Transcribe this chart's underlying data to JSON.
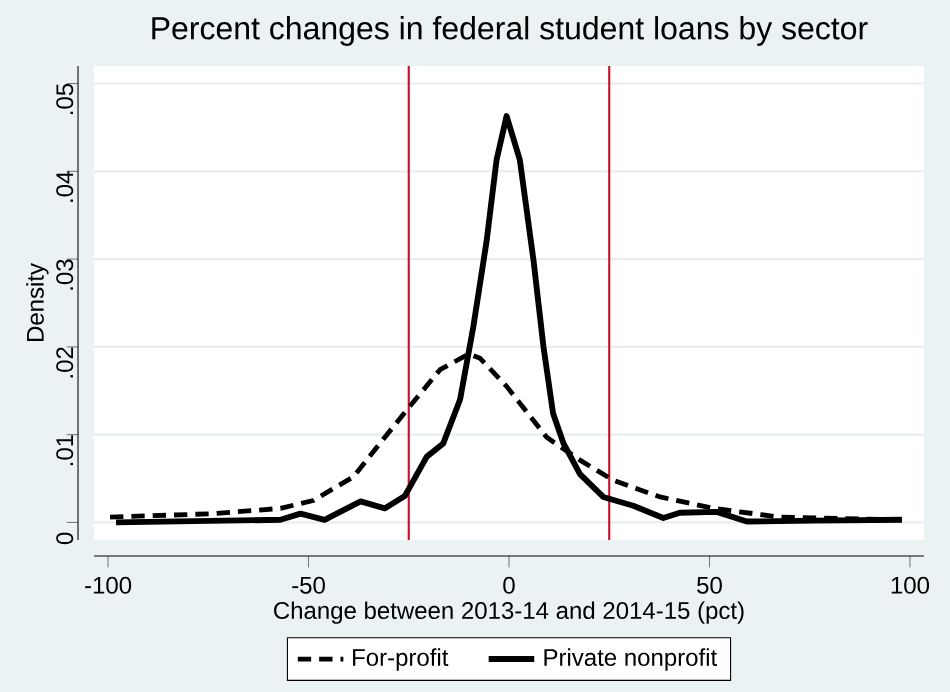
{
  "chart_data": {
    "type": "line",
    "title": "Percent changes in federal student loans by sector",
    "xlabel": "Change between 2013-14 and 2014-15 (pct)",
    "ylabel": "Density",
    "xlim": [
      -103.5,
      103.5
    ],
    "ylim": [
      -0.002,
      0.052
    ],
    "xticks": [
      -100,
      -50,
      0,
      50,
      100
    ],
    "yticks": [
      0,
      {
        "value": 0.01,
        "label": ".01"
      },
      {
        "value": 0.02,
        "label": ".02"
      },
      {
        "value": 0.03,
        "label": ".03"
      },
      {
        "value": 0.04,
        "label": ".04"
      },
      {
        "value": 0.05,
        "label": ".05"
      }
    ],
    "grid": "y",
    "legend": "bottom",
    "ref_lines": [
      {
        "axis": "x",
        "value": -25,
        "color": "#c8102e"
      },
      {
        "axis": "x",
        "value": 25,
        "color": "#c8102e"
      }
    ],
    "series": [
      {
        "name": "For-profit",
        "color": "#000000",
        "line_style": "dashed",
        "x": [
          -99.5,
          -73.7,
          -57,
          -48.8,
          -38.8,
          -32.2,
          -25.5,
          -17.2,
          -10,
          -7.2,
          -0.6,
          9.4,
          17.7,
          26,
          37.7,
          51,
          67.6,
          98
        ],
        "values": [
          0.0006,
          0.001,
          0.0016,
          0.0025,
          0.0052,
          0.009,
          0.0128,
          0.0174,
          0.0192,
          0.0187,
          0.0155,
          0.0097,
          0.0071,
          0.0048,
          0.0029,
          0.0016,
          0.0006,
          0.0003
        ]
      },
      {
        "name": "Private nonprofit",
        "color": "#000000",
        "line_style": "solid",
        "x": [
          -98,
          -57,
          -52,
          -46,
          -37,
          -31,
          -26,
          -20.5,
          -16.4,
          -12.2,
          -8.9,
          -5.6,
          -3.1,
          -0.6,
          2.7,
          6.1,
          8.6,
          11,
          13.6,
          17.7,
          23.5,
          31,
          38.5,
          42.6,
          51.8,
          59.3,
          76,
          98
        ],
        "values": [
          0,
          0.0003,
          0.001,
          0.0003,
          0.0024,
          0.0016,
          0.003,
          0.0075,
          0.009,
          0.014,
          0.0223,
          0.032,
          0.0413,
          0.0463,
          0.0413,
          0.0299,
          0.02,
          0.0124,
          0.009,
          0.0055,
          0.0029,
          0.0019,
          0.0005,
          0.0011,
          0.0012,
          0.0001,
          0.0002,
          0.0003
        ]
      }
    ]
  }
}
